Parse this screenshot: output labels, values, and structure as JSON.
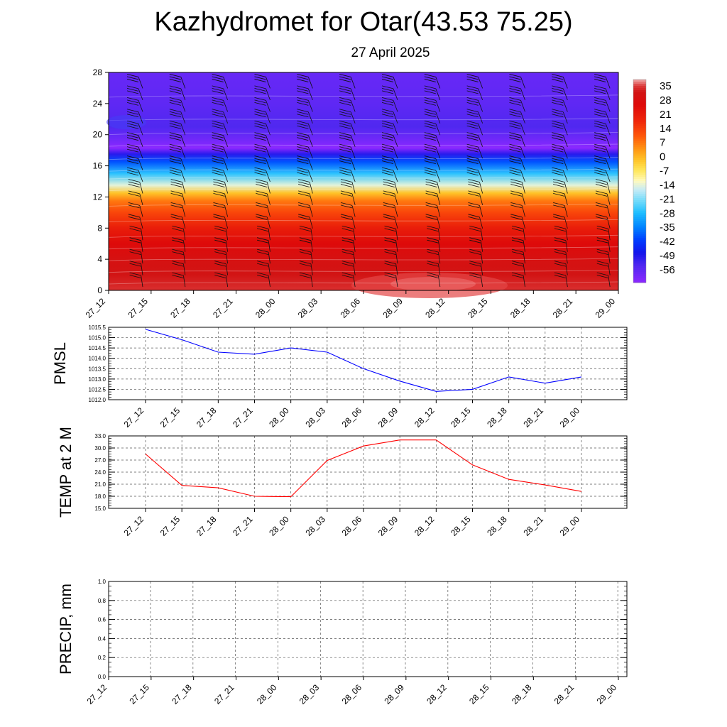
{
  "header": {
    "title": "Kazhydromet for Otar(43.53 75.25)",
    "subtitle": "27 April 2025"
  },
  "chart_data": [
    {
      "type": "heatmap",
      "title": "",
      "xlabel": "",
      "ylabel": "",
      "x_ticks": [
        "27_12",
        "27_15",
        "27_18",
        "27_21",
        "28_00",
        "28_03",
        "28_06",
        "28_09",
        "28_12",
        "28_15",
        "28_18",
        "28_21",
        "29_00"
      ],
      "y_ticks": [
        "0",
        "4",
        "8",
        "12",
        "16",
        "20",
        "24",
        "28"
      ],
      "ylim": [
        0,
        28
      ],
      "colorbar": {
        "labels": [
          "35",
          "28",
          "21",
          "14",
          "7",
          "0",
          "-7",
          "-14",
          "-21",
          "-28",
          "-35",
          "-42",
          "-49",
          "-56"
        ],
        "range": [
          -60,
          36
        ]
      },
      "temperature_profile": [
        {
          "level": 0,
          "value": 32
        },
        {
          "level": 2,
          "value": 30
        },
        {
          "level": 4,
          "value": 28
        },
        {
          "level": 6,
          "value": 24
        },
        {
          "level": 8,
          "value": 19
        },
        {
          "level": 10,
          "value": 12
        },
        {
          "level": 11.5,
          "value": 6
        },
        {
          "level": 12.5,
          "value": -2
        },
        {
          "level": 13.5,
          "value": -14
        },
        {
          "level": 15,
          "value": -26
        },
        {
          "level": 16.5,
          "value": -38
        },
        {
          "level": 17.5,
          "value": -48
        },
        {
          "level": 18.3,
          "value": -60
        },
        {
          "level": 19.5,
          "value": -56
        },
        {
          "level": 21,
          "value": -52
        },
        {
          "level": 24,
          "value": -54
        },
        {
          "level": 28,
          "value": -55
        }
      ],
      "wind_barbs": true
    },
    {
      "type": "line",
      "ylabel": "PMSL",
      "ylim": [
        1012.0,
        1015.5
      ],
      "y_ticks": [
        "1012.0",
        "1012.5",
        "1013.0",
        "1013.5",
        "1014.0",
        "1014.5",
        "1015.0",
        "1015.5"
      ],
      "categories": [
        "27_12",
        "27_15",
        "27_18",
        "27_21",
        "28_00",
        "28_03",
        "28_06",
        "28_09",
        "28_12",
        "28_15",
        "28_18",
        "28_21",
        "29_00"
      ],
      "series": [
        {
          "values": [
            1015.4,
            1014.9,
            1014.3,
            1014.2,
            1014.5,
            1014.3,
            1013.5,
            1012.9,
            1012.4,
            1012.5,
            1013.1,
            1012.8,
            1013.1
          ],
          "color": "#0000ff"
        }
      ],
      "grid": true
    },
    {
      "type": "line",
      "ylabel": "TEMP at 2 M",
      "ylim": [
        15.0,
        33.0
      ],
      "y_ticks": [
        "15.0",
        "18.0",
        "21.0",
        "24.0",
        "27.0",
        "30.0",
        "33.0"
      ],
      "categories": [
        "27_12",
        "27_15",
        "27_18",
        "27_21",
        "28_00",
        "28_03",
        "28_06",
        "28_09",
        "28_12",
        "28_15",
        "28_18",
        "28_21",
        "29_00"
      ],
      "series": [
        {
          "values": [
            28.5,
            20.7,
            20.1,
            18.0,
            17.9,
            26.9,
            30.5,
            32.0,
            32.0,
            25.8,
            22.2,
            20.8,
            19.2
          ],
          "color": "#ff0000"
        }
      ],
      "grid": true
    },
    {
      "type": "line",
      "ylabel": "PRECIP, mm",
      "ylim": [
        0.0,
        1.0
      ],
      "y_ticks": [
        "0.0",
        "0.2",
        "0.4",
        "0.6",
        "0.8",
        "1.0"
      ],
      "categories": [
        "27_12",
        "27_15",
        "27_18",
        "27_21",
        "28_00",
        "28_03",
        "28_06",
        "28_09",
        "28_12",
        "28_15",
        "28_18",
        "28_21",
        "29_00"
      ],
      "series": [
        {
          "values": [
            0,
            0,
            0,
            0,
            0,
            0,
            0,
            0,
            0,
            0,
            0,
            0,
            0
          ],
          "color": "#008000"
        }
      ],
      "grid": true
    }
  ]
}
